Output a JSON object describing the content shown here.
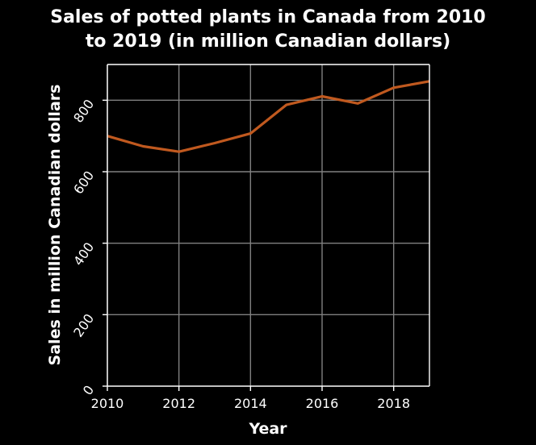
{
  "chart_data": {
    "type": "line",
    "title_lines": [
      "Sales of potted plants in Canada from 2010",
      "to 2019 (in million Canadian dollars)"
    ],
    "xlabel": "Year",
    "ylabel": "Sales in million Canadian dollars",
    "x": [
      2010,
      2011,
      2012,
      2013,
      2014,
      2015,
      2016,
      2017,
      2018,
      2019
    ],
    "series": [
      {
        "values": [
          700,
          671,
          656,
          680,
          707,
          787,
          811,
          791,
          835,
          853
        ],
        "color": "#c0591f"
      }
    ],
    "xlim": [
      2010,
      2019
    ],
    "ylim": [
      0,
      900
    ],
    "xticks": [
      2010,
      2012,
      2014,
      2016,
      2018
    ],
    "yticks": [
      0,
      200,
      400,
      600,
      800
    ],
    "xtick_labels": [
      "2010",
      "2012",
      "2014",
      "2016",
      "2018"
    ],
    "ytick_labels": [
      "0",
      "200",
      "400",
      "600",
      "800"
    ],
    "ytick_label_rotation": "rotated",
    "grid": true,
    "legend": "none",
    "background_color": "#000000",
    "text_color": "#ffffff",
    "grid_color": "#808080"
  }
}
